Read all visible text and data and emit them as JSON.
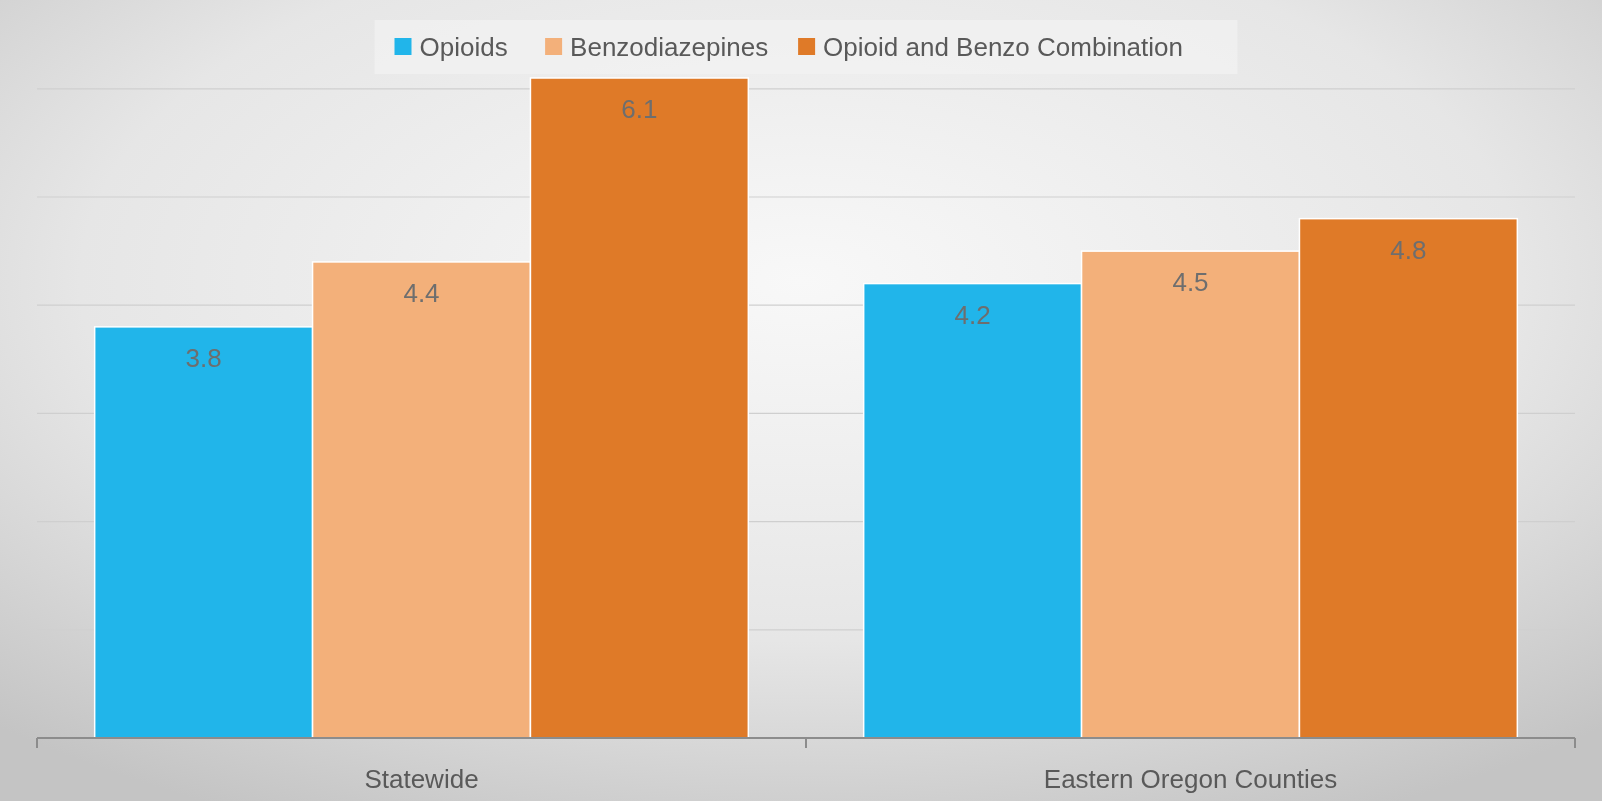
{
  "chart_data": {
    "type": "bar",
    "categories": [
      "Statewide",
      "Eastern Oregon Counties"
    ],
    "series": [
      {
        "name": "Opioids",
        "color": "#21b5ea",
        "values": [
          3.8,
          4.2
        ]
      },
      {
        "name": "Benzodiazepines",
        "color": "#f3b07a",
        "values": [
          4.4,
          4.5
        ]
      },
      {
        "name": "Opioid and Benzo Combination",
        "color": "#df7a28",
        "values": [
          6.1,
          4.8
        ]
      }
    ],
    "ylim": [
      0,
      6.1
    ],
    "yticks": [
      {
        "value": 0,
        "label": null
      },
      {
        "value": 1,
        "label": null
      },
      {
        "value": 2,
        "label": null
      },
      {
        "value": 3,
        "label": null
      },
      {
        "value": 4,
        "label": null
      },
      {
        "value": 5,
        "label": null
      },
      {
        "value": 6,
        "label": null
      }
    ],
    "tick_labels": "x",
    "grid": "y",
    "legend": "top",
    "data_labels": true
  }
}
